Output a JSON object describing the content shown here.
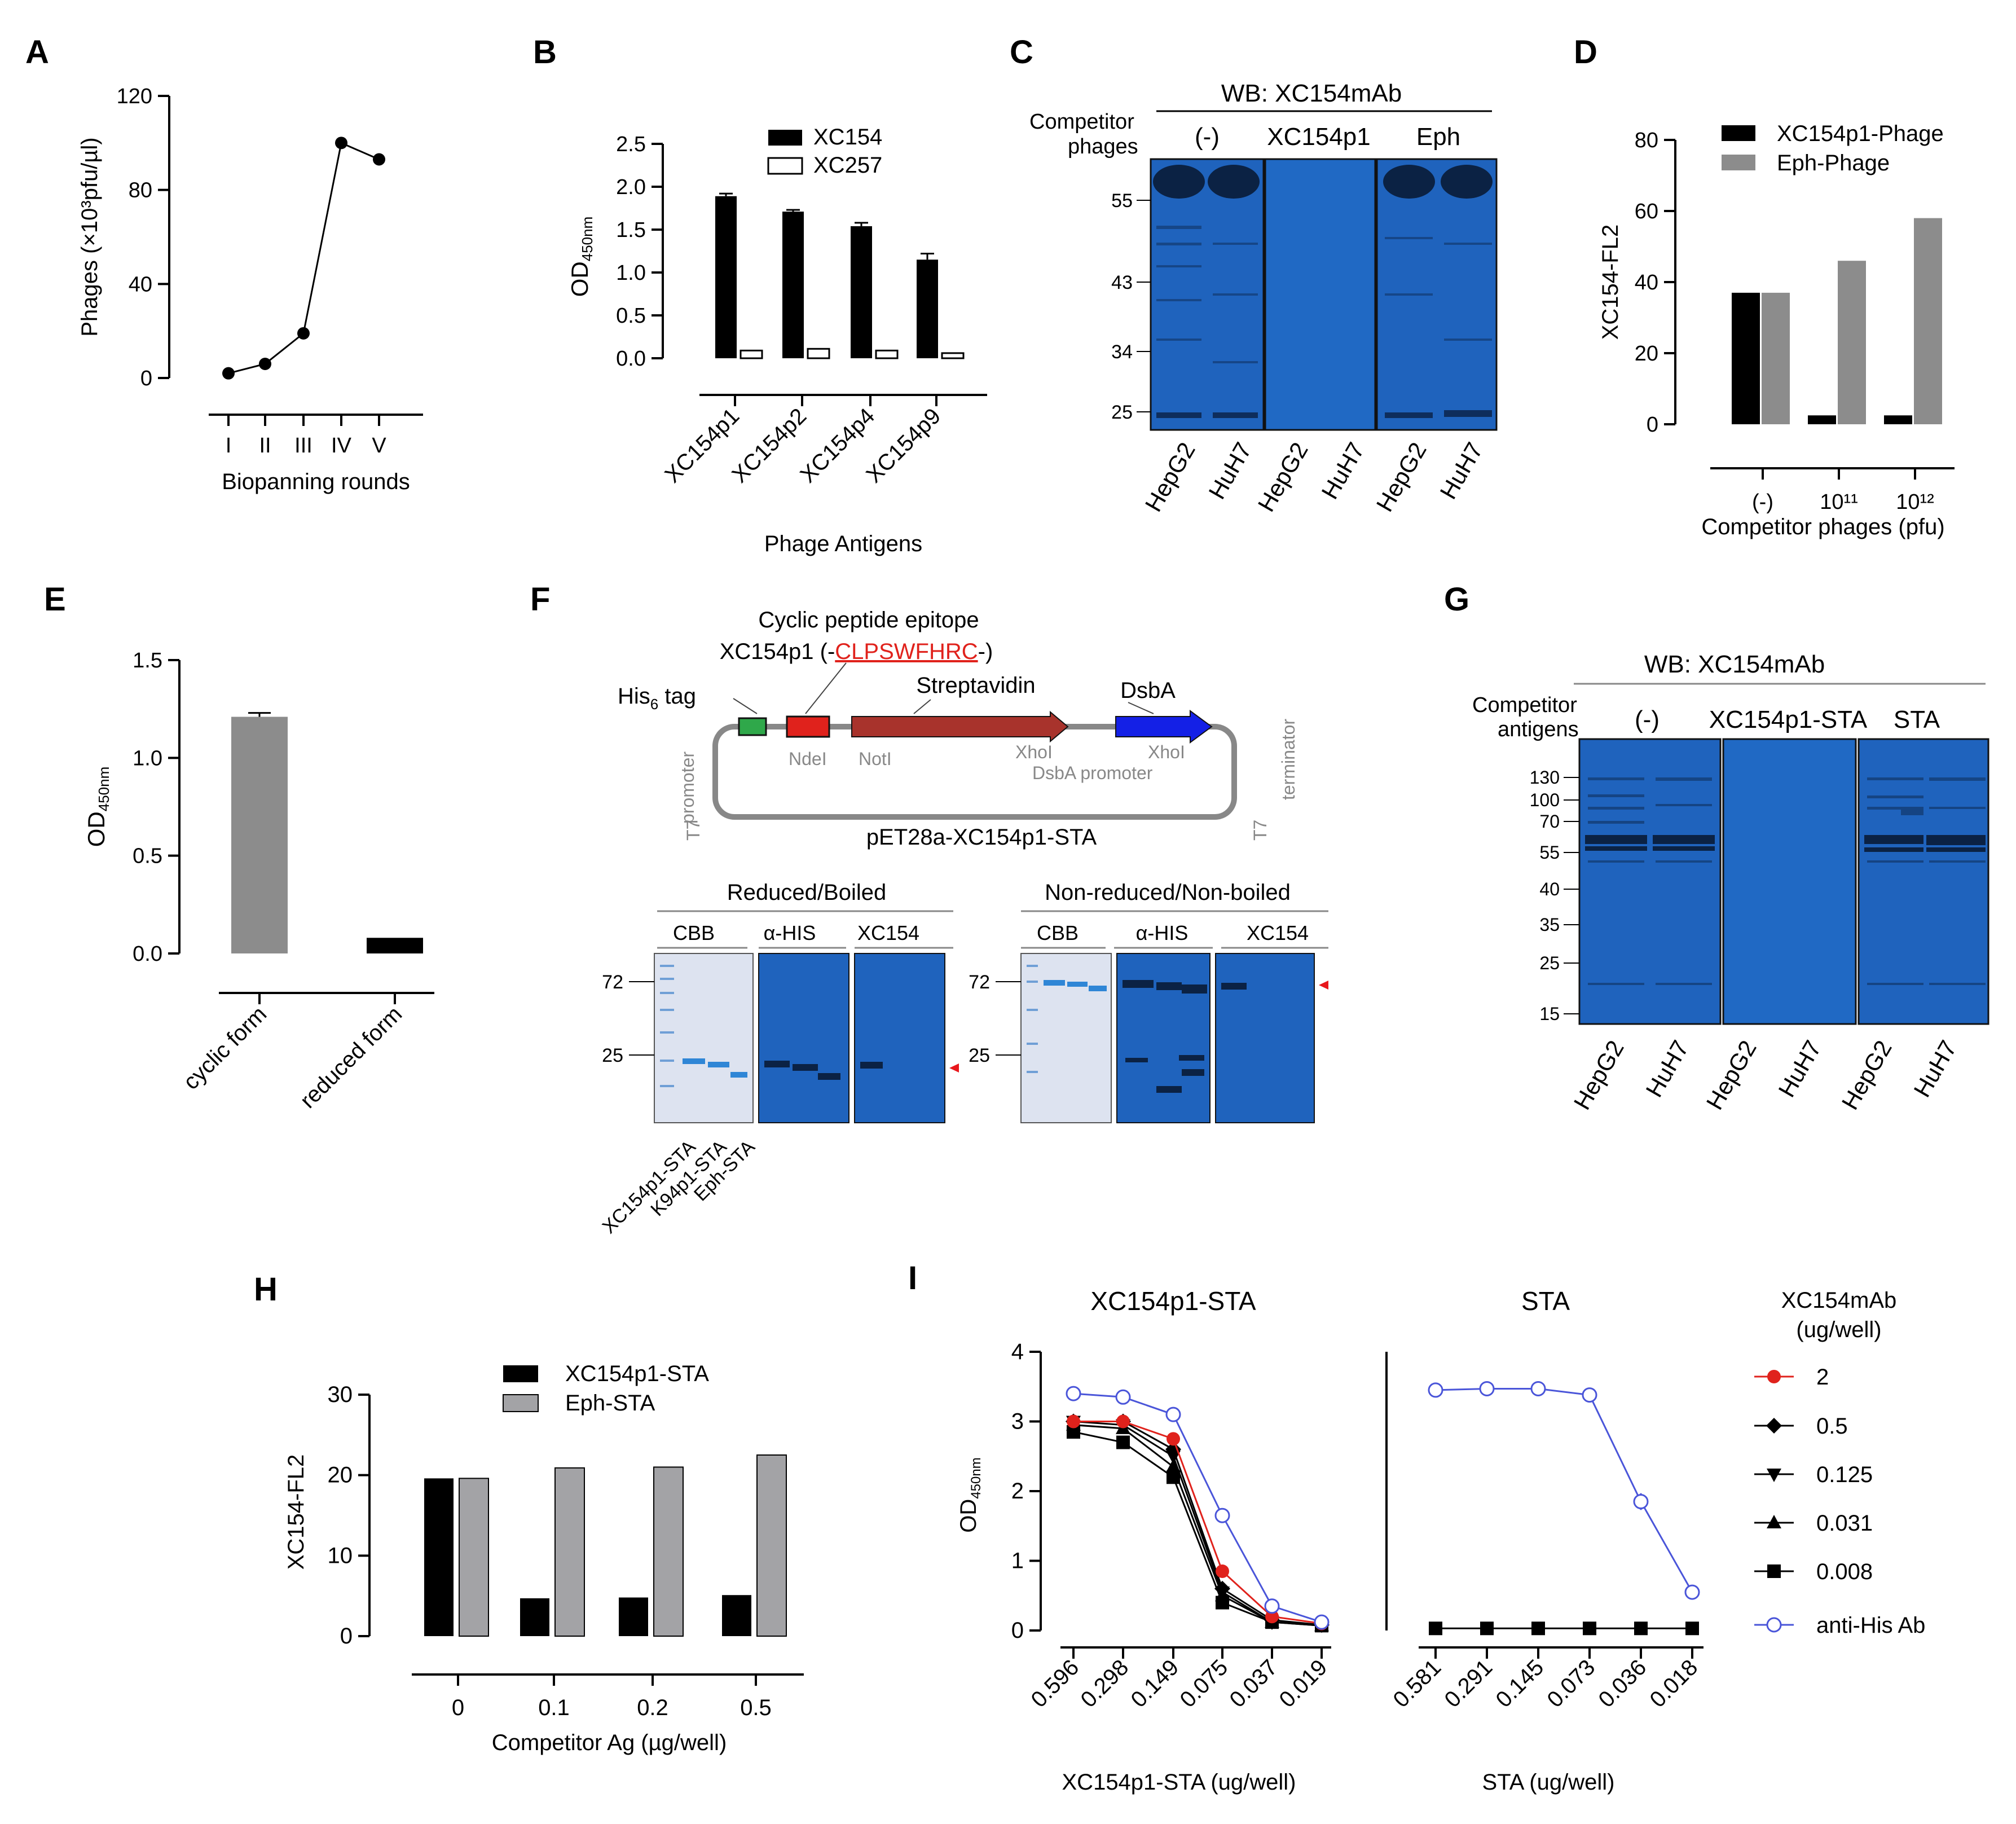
{
  "colors": {
    "black": "#000000",
    "gray": "#8c8c8c",
    "grayH": "#a3a3a6",
    "blot": "#1f63bd",
    "blotDark": "#0b2244",
    "cbb": "#dde3f0",
    "cbbBand": "#2f86d6",
    "red": "#e0221c",
    "green": "#2fa84a",
    "plasmidRed": "#a8332c",
    "blue": "#1420e6",
    "plasmidGray": "#888888",
    "antiHis": "#4a55d9",
    "marker": "#e8171c"
  },
  "chart_data": [
    {
      "id": "A",
      "type": "line",
      "panel_label": "A",
      "ylabel": "Phages (×10³pfu/µl)",
      "xlabel": "Biopanning rounds",
      "categories": [
        "I",
        "II",
        "III",
        "IV",
        "V"
      ],
      "values": [
        2,
        6,
        19,
        100,
        93
      ],
      "ylim": [
        0,
        120
      ],
      "yticks": [
        "0",
        "40",
        "80",
        "120"
      ]
    },
    {
      "id": "B",
      "type": "bar",
      "panel_label": "B",
      "ylabel": "OD450nm",
      "xlabel": "Phage Antigens",
      "categories": [
        "XC154p1",
        "XC154p2",
        "XC154p4",
        "XC154p9"
      ],
      "series": [
        {
          "name": "XC154",
          "values": [
            1.89,
            1.71,
            1.54,
            1.15
          ],
          "err": [
            0.03,
            0.02,
            0.04,
            0.07
          ]
        },
        {
          "name": "XC257",
          "values": [
            0.09,
            0.11,
            0.09,
            0.06
          ],
          "err": [
            0.01,
            0.02,
            0.01,
            0.01
          ]
        }
      ],
      "ylim": [
        0,
        2.5
      ],
      "yticks": [
        "0.0",
        "0.5",
        "1.0",
        "1.5",
        "2.0",
        "2.5"
      ]
    },
    {
      "id": "D",
      "type": "bar",
      "panel_label": "D",
      "ylabel": "XC154-FL2",
      "xlabel": "Competitor phages (pfu)",
      "categories": [
        "(-)",
        "10¹¹",
        "10¹²"
      ],
      "series": [
        {
          "name": "XC154p1-Phage",
          "values": [
            37,
            2.5,
            2.5
          ]
        },
        {
          "name": "Eph-Phage",
          "values": [
            37,
            46,
            58
          ]
        }
      ],
      "ylim": [
        0,
        80
      ],
      "yticks": [
        "0",
        "20",
        "40",
        "60",
        "80"
      ]
    },
    {
      "id": "E",
      "type": "bar",
      "panel_label": "E",
      "ylabel": "OD450nm",
      "xlabel": "",
      "categories": [
        "cyclic form",
        "reduced form"
      ],
      "values": [
        1.21,
        0.08
      ],
      "err": [
        0.02,
        0.0
      ],
      "ylim": [
        0,
        1.5
      ],
      "yticks": [
        "0.0",
        "0.5",
        "1.0",
        "1.5"
      ]
    },
    {
      "id": "H",
      "type": "bar",
      "panel_label": "H",
      "ylabel": "XC154-FL2",
      "xlabel": "Competitor Ag (µg/well)",
      "categories": [
        "0",
        "0.1",
        "0.2",
        "0.5"
      ],
      "series": [
        {
          "name": "XC154p1-STA",
          "values": [
            19.6,
            4.7,
            4.8,
            5.1
          ]
        },
        {
          "name": "Eph-STA",
          "values": [
            19.6,
            20.9,
            21.0,
            22.5
          ]
        }
      ],
      "ylim": [
        0,
        30
      ],
      "yticks": [
        "0",
        "10",
        "20",
        "30"
      ]
    },
    {
      "id": "I1",
      "type": "line",
      "panel_label": "I",
      "title": "XC154p1-STA",
      "ylabel": "OD450nm",
      "xlabel": "XC154p1-STA (ug/well)",
      "categories": [
        "0.596",
        "0.298",
        "0.149",
        "0.075",
        "0.037",
        "0.019"
      ],
      "series": [
        {
          "name": "2",
          "values": [
            3.0,
            3.0,
            2.75,
            0.85,
            0.2,
            0.1
          ]
        },
        {
          "name": "0.5",
          "values": [
            3.0,
            3.0,
            2.6,
            0.6,
            0.15,
            0.08
          ]
        },
        {
          "name": "0.125",
          "values": [
            3.0,
            2.95,
            2.5,
            0.55,
            0.12,
            0.08
          ]
        },
        {
          "name": "0.031",
          "values": [
            2.95,
            2.9,
            2.35,
            0.5,
            0.12,
            0.07
          ]
        },
        {
          "name": "0.008",
          "values": [
            2.85,
            2.7,
            2.2,
            0.4,
            0.12,
            0.07
          ]
        },
        {
          "name": "anti-His Ab",
          "values": [
            3.4,
            3.35,
            3.1,
            1.65,
            0.35,
            0.12
          ]
        }
      ],
      "ylim": [
        0,
        4
      ],
      "yticks": [
        "0",
        "1",
        "2",
        "3",
        "4"
      ]
    },
    {
      "id": "I2",
      "type": "line",
      "title": "STA",
      "xlabel": "STA (ug/well)",
      "categories": [
        "0.581",
        "0.291",
        "0.145",
        "0.073",
        "0.036",
        "0.018"
      ],
      "series": [
        {
          "name": "XC154mAb",
          "values": [
            0.03,
            0.03,
            0.03,
            0.03,
            0.03,
            0.03
          ]
        },
        {
          "name": "anti-His Ab",
          "values": [
            3.45,
            3.47,
            3.47,
            3.38,
            1.85,
            0.55
          ]
        }
      ],
      "ylim": [
        0,
        4
      ]
    }
  ],
  "legends": {
    "I_title_1": "XC154mAb",
    "I_title_2": "(ug/well)",
    "I_items": [
      "2",
      "0.5",
      "0.125",
      "0.031",
      "0.008",
      "anti-His Ab"
    ]
  },
  "panelC": {
    "label": "C",
    "wb": "WB: XC154mAb",
    "competitor_1": "Competitor",
    "competitor_2": "phages",
    "groups": [
      "(-)",
      "XC154p1",
      "Eph"
    ],
    "mw": [
      "55",
      "43",
      "34",
      "25"
    ],
    "lanes": [
      "HepG2",
      "HuH7",
      "HepG2",
      "HuH7",
      "HepG2",
      "HuH7"
    ]
  },
  "panelF": {
    "label": "F",
    "epitope_title": "Cyclic peptide epitope",
    "epitope_prefix": "XC154p1 (-",
    "epitope_seq": "CLPSWFHRC",
    "epitope_suffix": "-)",
    "his_tag": "His",
    "his_sub": "6",
    "his_tail": " tag",
    "streptavidin": "Streptavidin",
    "dsba": "DsbA",
    "t7": "T7",
    "promoter": "promoter",
    "terminator": "terminator",
    "ndei": "NdeI",
    "noti": "NotI",
    "xhoi1": "XhoI",
    "xhoi2": "XhoI",
    "dsba_promoter": "DsbA promoter",
    "plasmid": "pET28a-XC154p1-STA",
    "reduced": "Reduced/Boiled",
    "nonreduced": "Non-reduced/Non-boiled",
    "cbb": "CBB",
    "ahis": "α-HIS",
    "xc154": "XC154",
    "mw": [
      "72",
      "25"
    ],
    "lanes": [
      "XC154p1-STA",
      "K94p1-STA",
      "Eph-STA"
    ]
  },
  "panelG": {
    "label": "G",
    "wb": "WB: XC154mAb",
    "competitor_1": "Competitor",
    "competitor_2": "antigens",
    "groups": [
      "(-)",
      "XC154p1-STA",
      "STA"
    ],
    "mw": [
      "130",
      "100",
      "70",
      "55",
      "40",
      "35",
      "25",
      "15"
    ],
    "lanes": [
      "HepG2",
      "HuH7",
      "HepG2",
      "HuH7",
      "HepG2",
      "HuH7"
    ]
  }
}
